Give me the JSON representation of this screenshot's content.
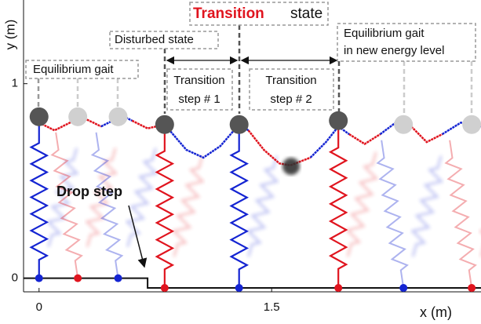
{
  "chart_data": {
    "type": "gait",
    "title_highlight": "Transition",
    "title_rest": "state",
    "xlabel": "x (m)",
    "ylabel": "y (m)",
    "xlim": [
      -0.1,
      2.85
    ],
    "ylim": [
      -0.07,
      1.41
    ],
    "xticks": [
      0,
      1.5
    ],
    "yticks": [
      0,
      1
    ],
    "annotations": {
      "disturbed": "Disturbed state",
      "equilibrium": "Equilibrium gait",
      "new_level": [
        "Equilibrium gait",
        "in new energy level"
      ],
      "step1": [
        "Transition",
        "step # 1"
      ],
      "step2": [
        "Transition",
        "step # 2"
      ],
      "drop": "Drop step"
    },
    "ground": {
      "x": [
        -0.1,
        0.7,
        0.7,
        2.85
      ],
      "y": [
        0,
        0,
        -0.05,
        -0.05
      ]
    },
    "segments": [
      {
        "color": "#e0141e",
        "x": [
          0,
          0.1,
          0.2,
          0.27,
          0.35,
          0.4
        ],
        "y": [
          0.8,
          0.76,
          0.8,
          0.83,
          0.8,
          0.78
        ]
      },
      {
        "color": "#1424d2",
        "x": [
          0.4,
          0.5,
          0.55,
          0.6
        ],
        "y": [
          0.78,
          0.82,
          0.83,
          0.81
        ]
      },
      {
        "color": "#e0141e",
        "x": [
          0.6,
          0.7,
          0.81
        ],
        "y": [
          0.81,
          0.77,
          0.79
        ]
      },
      {
        "color": "#1424d2",
        "x": [
          0.81,
          0.95,
          1.06,
          1.17,
          1.29,
          1.35
        ],
        "y": [
          0.79,
          0.66,
          0.62,
          0.68,
          0.79,
          0.76
        ]
      },
      {
        "color": "#e0141e",
        "x": [
          1.35,
          1.45,
          1.55,
          1.62,
          1.75
        ],
        "y": [
          0.76,
          0.66,
          0.59,
          0.58,
          0.62
        ]
      },
      {
        "color": "#1424d2",
        "x": [
          1.75,
          1.85,
          1.93,
          2.0
        ],
        "y": [
          0.62,
          0.7,
          0.78,
          0.74
        ]
      },
      {
        "color": "#e0141e",
        "x": [
          2.0,
          2.1,
          2.2
        ],
        "y": [
          0.74,
          0.69,
          0.74
        ]
      },
      {
        "color": "#1424d2",
        "x": [
          2.2,
          2.3,
          2.4
        ],
        "y": [
          0.74,
          0.8,
          0.78
        ]
      },
      {
        "color": "#e0141e",
        "x": [
          2.4,
          2.5,
          2.6
        ],
        "y": [
          0.78,
          0.7,
          0.74
        ]
      },
      {
        "color": "#1424d2",
        "x": [
          2.6,
          2.72,
          2.85
        ],
        "y": [
          0.74,
          0.8,
          0.78
        ]
      }
    ],
    "contacts": [
      {
        "x": 0,
        "foot_y": 0,
        "com_y": 0.83,
        "color": "#1424d2",
        "solid": true
      },
      {
        "x": 0.25,
        "foot_y": 0,
        "com_y": 0.83,
        "color": "#e0141e",
        "solid": false
      },
      {
        "x": 0.51,
        "foot_y": 0,
        "com_y": 0.83,
        "color": "#1424d2",
        "solid": false
      },
      {
        "x": 0.81,
        "foot_y": -0.05,
        "com_y": 0.79,
        "color": "#e0141e",
        "solid": true
      },
      {
        "x": 1.29,
        "foot_y": -0.05,
        "com_y": 0.79,
        "color": "#1424d2",
        "solid": true
      },
      {
        "x": 1.93,
        "foot_y": -0.05,
        "com_y": 0.81,
        "color": "#e0141e",
        "solid": true
      },
      {
        "x": 2.35,
        "foot_y": -0.05,
        "com_y": 0.79,
        "color": "#1424d2",
        "solid": false
      },
      {
        "x": 2.79,
        "foot_y": -0.05,
        "com_y": 0.79,
        "color": "#e0141e",
        "solid": false
      }
    ]
  }
}
